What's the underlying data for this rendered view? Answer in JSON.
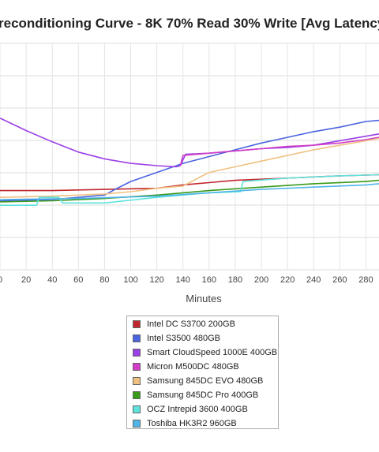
{
  "chart_data": {
    "type": "line",
    "title": "reconditioning Curve - 8K 70% Read 30% Write [Avg Latency",
    "xlabel": "Minutes",
    "ylabel": "",
    "xlim": [
      0,
      290
    ],
    "xticks": [
      0,
      20,
      40,
      60,
      80,
      100,
      120,
      140,
      160,
      180,
      200,
      220,
      240,
      260,
      280
    ],
    "xtick_labels": [
      "0",
      "20",
      "40",
      "60",
      "80",
      "100",
      "120",
      "140",
      "160",
      "180",
      "200",
      "220",
      "240",
      "260",
      "280"
    ],
    "ylim": [
      0,
      10
    ],
    "grid": true,
    "legend_position": "bottom-center",
    "series": [
      {
        "name": "Intel DC S3700 200GB",
        "color": "#c0272d",
        "points": [
          [
            0,
            3.5
          ],
          [
            40,
            3.5
          ],
          [
            80,
            3.55
          ],
          [
            120,
            3.6
          ],
          [
            140,
            3.75
          ],
          [
            160,
            3.85
          ],
          [
            180,
            3.95
          ],
          [
            200,
            4.0
          ],
          [
            220,
            4.05
          ],
          [
            240,
            4.1
          ],
          [
            260,
            4.15
          ],
          [
            290,
            4.2
          ]
        ]
      },
      {
        "name": "Intel S3500 480GB",
        "color": "#4a64e0",
        "points": [
          [
            0,
            3.05
          ],
          [
            40,
            3.1
          ],
          [
            80,
            3.3
          ],
          [
            88,
            3.55
          ],
          [
            100,
            3.9
          ],
          [
            120,
            4.3
          ],
          [
            140,
            4.7
          ],
          [
            160,
            5.0
          ],
          [
            180,
            5.3
          ],
          [
            200,
            5.6
          ],
          [
            220,
            5.85
          ],
          [
            240,
            6.1
          ],
          [
            260,
            6.3
          ],
          [
            280,
            6.55
          ],
          [
            290,
            6.6
          ]
        ]
      },
      {
        "name": "Smart CloudSpeed 1000E 400GB",
        "color": "#9b3fe6",
        "points": [
          [
            0,
            6.7
          ],
          [
            20,
            6.15
          ],
          [
            40,
            5.65
          ],
          [
            60,
            5.2
          ],
          [
            80,
            4.9
          ],
          [
            100,
            4.7
          ],
          [
            120,
            4.6
          ],
          [
            135,
            4.55
          ],
          [
            138,
            4.6
          ],
          [
            142,
            5.1
          ],
          [
            160,
            5.15
          ],
          [
            180,
            5.25
          ],
          [
            200,
            5.35
          ],
          [
            220,
            5.4
          ],
          [
            240,
            5.5
          ],
          [
            260,
            5.7
          ],
          [
            280,
            5.9
          ],
          [
            290,
            6.0
          ]
        ]
      },
      {
        "name": "Micron M500DC 480GB",
        "color": "#d13dc8",
        "points": [
          [
            138,
            4.6
          ],
          [
            140,
            5.05
          ],
          [
            160,
            5.15
          ],
          [
            180,
            5.25
          ],
          [
            200,
            5.35
          ],
          [
            220,
            5.45
          ],
          [
            240,
            5.5
          ],
          [
            260,
            5.6
          ],
          [
            280,
            5.75
          ],
          [
            290,
            5.85
          ]
        ]
      },
      {
        "name": "Samsung 845DC EVO 480GB",
        "color": "#f0c080",
        "points": [
          [
            0,
            3.2
          ],
          [
            40,
            3.25
          ],
          [
            80,
            3.35
          ],
          [
            100,
            3.45
          ],
          [
            120,
            3.6
          ],
          [
            140,
            3.7
          ],
          [
            160,
            4.3
          ],
          [
            180,
            4.55
          ],
          [
            200,
            4.8
          ],
          [
            220,
            5.05
          ],
          [
            240,
            5.3
          ],
          [
            260,
            5.5
          ],
          [
            280,
            5.7
          ],
          [
            290,
            5.8
          ]
        ]
      },
      {
        "name": "Samsung 845DC Pro 400GB",
        "color": "#3a9a1a",
        "points": [
          [
            0,
            3.0
          ],
          [
            40,
            3.05
          ],
          [
            80,
            3.15
          ],
          [
            120,
            3.3
          ],
          [
            160,
            3.5
          ],
          [
            200,
            3.65
          ],
          [
            240,
            3.8
          ],
          [
            280,
            3.9
          ],
          [
            290,
            3.95
          ]
        ]
      },
      {
        "name": "OCZ Intrepid 3600 400GB",
        "color": "#5fe3dc",
        "points": [
          [
            0,
            2.85
          ],
          [
            28,
            2.85
          ],
          [
            30,
            3.2
          ],
          [
            45,
            3.2
          ],
          [
            48,
            2.95
          ],
          [
            80,
            2.95
          ],
          [
            120,
            3.2
          ],
          [
            160,
            3.4
          ],
          [
            184,
            3.45
          ],
          [
            186,
            3.9
          ],
          [
            220,
            4.05
          ],
          [
            260,
            4.15
          ],
          [
            290,
            4.2
          ]
        ]
      },
      {
        "name": "Toshiba HK3R2 960GB",
        "color": "#4fb5e8",
        "points": [
          [
            0,
            3.1
          ],
          [
            60,
            3.15
          ],
          [
            120,
            3.25
          ],
          [
            160,
            3.4
          ],
          [
            200,
            3.55
          ],
          [
            240,
            3.65
          ],
          [
            280,
            3.75
          ],
          [
            290,
            3.8
          ]
        ]
      }
    ]
  }
}
